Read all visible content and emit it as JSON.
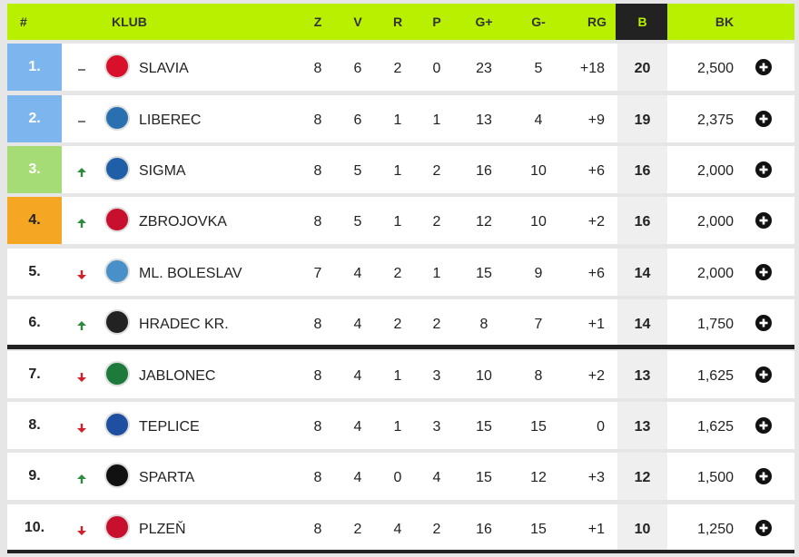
{
  "header": [
    "#",
    "KLUB",
    "Z",
    "V",
    "R",
    "P",
    "G+",
    "G-",
    "RG",
    "B",
    "BK"
  ],
  "rows": [
    [
      "1.",
      "SLAVIA",
      "8",
      "6",
      "2",
      "0",
      "23",
      "5",
      "+18",
      "20",
      "2,500"
    ],
    [
      "2.",
      "LIBEREC",
      "8",
      "6",
      "1",
      "1",
      "13",
      "4",
      "+9",
      "19",
      "2,375"
    ],
    [
      "3.",
      "SIGMA",
      "8",
      "5",
      "1",
      "2",
      "16",
      "10",
      "+6",
      "16",
      "2,000"
    ],
    [
      "4.",
      "ZBROJOVKA",
      "8",
      "5",
      "1",
      "2",
      "12",
      "10",
      "+2",
      "16",
      "2,000"
    ],
    [
      "5.",
      "ML. BOLESLAV",
      "7",
      "4",
      "2",
      "1",
      "15",
      "9",
      "+6",
      "14",
      "2,000"
    ],
    [
      "6.",
      "HRADEC KR.",
      "8",
      "4",
      "2",
      "2",
      "8",
      "7",
      "+1",
      "14",
      "1,750"
    ],
    [
      "7.",
      "JABLONEC",
      "8",
      "4",
      "1",
      "3",
      "10",
      "8",
      "+2",
      "13",
      "1,625"
    ],
    [
      "8.",
      "TEPLICE",
      "8",
      "4",
      "1",
      "3",
      "15",
      "15",
      "0",
      "13",
      "1,625"
    ],
    [
      "9.",
      "SPARTA",
      "8",
      "4",
      "0",
      "4",
      "15",
      "12",
      "+3",
      "12",
      "1,500"
    ],
    [
      "10.",
      "PLZEŇ",
      "8",
      "2",
      "4",
      "2",
      "16",
      "15",
      "+1",
      "10",
      "1,250"
    ]
  ]
}
